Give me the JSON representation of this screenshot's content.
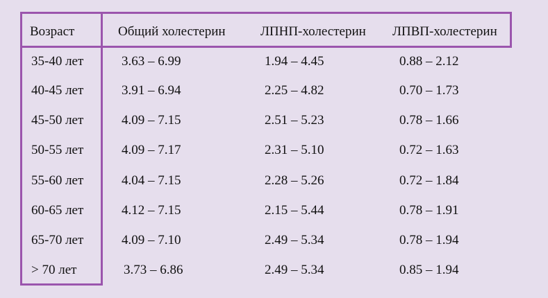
{
  "headers": [
    "Возраст",
    "Общий холестерин",
    "ЛПНП-холестерин",
    "ЛПВП-холестерин"
  ],
  "rows": [
    {
      "age": "35-40 лет",
      "total": "3.63 – 6.99",
      "ldl": "1.94 – 4.45",
      "hdl": "0.88 – 2.12"
    },
    {
      "age": "40-45 лет",
      "total": "3.91 – 6.94",
      "ldl": "2.25 – 4.82",
      "hdl": "0.70 – 1.73"
    },
    {
      "age": "45-50 лет",
      "total": "4.09 – 7.15",
      "ldl": "2.51 – 5.23",
      "hdl": "0.78 – 1.66"
    },
    {
      "age": "50-55 лет",
      "total": "4.09 – 7.17",
      "ldl": "2.31 – 5.10",
      "hdl": "0.72 – 1.63"
    },
    {
      "age": "55-60 лет",
      "total": "4.04 – 7.15",
      "ldl": "2.28 – 5.26",
      "hdl": "0.72 – 1.84"
    },
    {
      "age": "60-65 лет",
      "total": "4.12 – 7.15",
      "ldl": "2.15 – 5.44",
      "hdl": "0.78 – 1.91"
    },
    {
      "age": "65-70 лет",
      "total": "4.09 – 7.10",
      "ldl": "2.49 – 5.34",
      "hdl": "0.78 – 1.94"
    },
    {
      "age": "> 70 лет",
      "total": "3.73 – 6.86",
      "ldl": "2.49 – 5.34",
      "hdl": "0.85 – 1.94"
    }
  ],
  "colors": {
    "background": "#e6deed",
    "frame": "#9b55ad",
    "text": "#111111"
  }
}
